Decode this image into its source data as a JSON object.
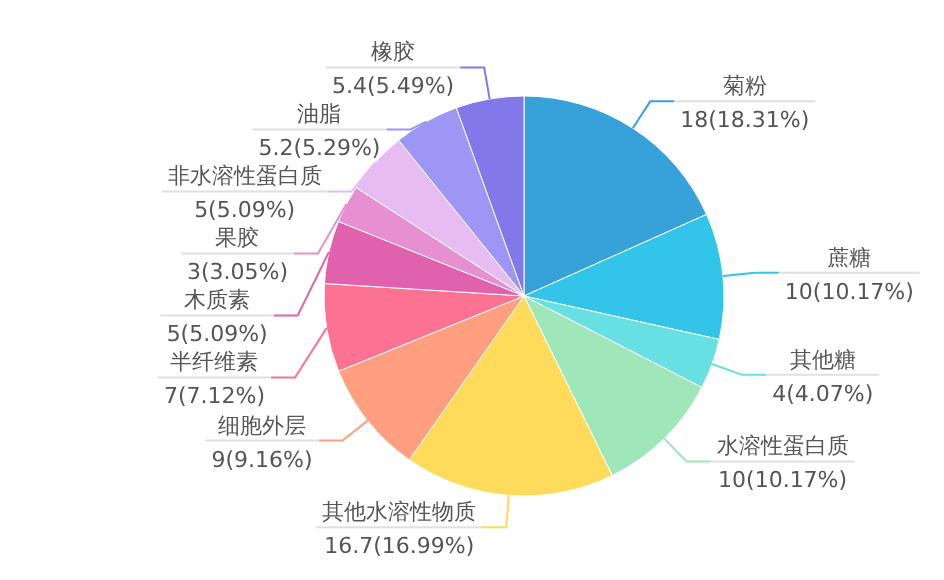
{
  "chart_data": {
    "type": "pie",
    "categories": [
      "菊粉",
      "蔗糖",
      "其他糖",
      "水溶性蛋白质",
      "其他水溶性物质",
      "细胞外层",
      "半纤维素",
      "木质素",
      "果胶",
      "非水溶性蛋白质",
      "油脂",
      "橡胶"
    ],
    "values": [
      18,
      10,
      4,
      10,
      16.7,
      9,
      7,
      5,
      3,
      5,
      5.2,
      5.4
    ],
    "colors": [
      "#37a2da",
      "#32c5e9",
      "#67e0e3",
      "#9fe6b8",
      "#ffdb5c",
      "#ff9f7f",
      "#fb7293",
      "#e062ae",
      "#e690d1",
      "#e7bcf3",
      "#9d96f5",
      "#8378ea"
    ],
    "value_labels": [
      "18(18.31%)",
      "10(10.17%)",
      "4(4.07%)",
      "10(10.17%)",
      "16.7(16.99%)",
      "9(9.16%)",
      "7(7.12%)",
      "5(5.09%)",
      "3(3.05%)",
      "5(5.09%)",
      "5.2(5.29%)",
      "5.4(5.49%)"
    ]
  }
}
